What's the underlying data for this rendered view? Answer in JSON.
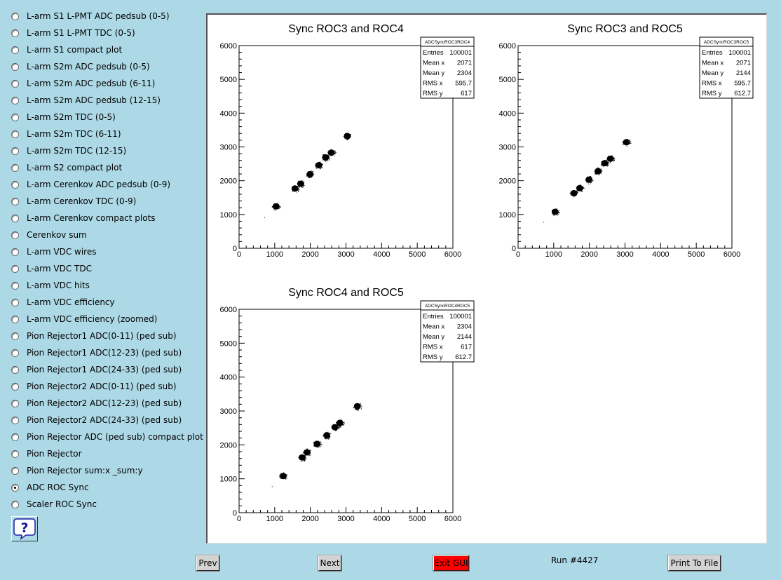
{
  "sidebar": {
    "items": [
      {
        "label": "L-arm S1 L-PMT ADC pedsub (0-5)",
        "checked": false
      },
      {
        "label": "L-arm S1 L-PMT TDC (0-5)",
        "checked": false
      },
      {
        "label": "L-arm S1 compact plot",
        "checked": false
      },
      {
        "label": "L-arm S2m ADC pedsub (0-5)",
        "checked": false
      },
      {
        "label": "L-arm S2m ADC pedsub (6-11)",
        "checked": false
      },
      {
        "label": "L-arm S2m ADC pedsub (12-15)",
        "checked": false
      },
      {
        "label": "L-arm S2m TDC (0-5)",
        "checked": false
      },
      {
        "label": "L-arm S2m TDC (6-11)",
        "checked": false
      },
      {
        "label": "L-arm S2m TDC (12-15)",
        "checked": false
      },
      {
        "label": "L-arm S2 compact plot",
        "checked": false
      },
      {
        "label": "L-arm Cerenkov ADC pedsub (0-9)",
        "checked": false
      },
      {
        "label": "L-arm Cerenkov TDC (0-9)",
        "checked": false
      },
      {
        "label": "L-arm Cerenkov compact plots",
        "checked": false
      },
      {
        "label": "Cerenkov sum",
        "checked": false
      },
      {
        "label": "L-arm VDC wires",
        "checked": false
      },
      {
        "label": "L-arm VDC TDC",
        "checked": false
      },
      {
        "label": "L-arm VDC hits",
        "checked": false
      },
      {
        "label": "L-arm VDC efficiency",
        "checked": false
      },
      {
        "label": "L-arm VDC efficiency (zoomed)",
        "checked": false
      },
      {
        "label": "Pion Rejector1 ADC(0-11) (ped sub)",
        "checked": false
      },
      {
        "label": "Pion Rejector1 ADC(12-23) (ped sub)",
        "checked": false
      },
      {
        "label": "Pion Rejector1 ADC(24-33) (ped sub)",
        "checked": false
      },
      {
        "label": "Pion Rejector2 ADC(0-11) (ped sub)",
        "checked": false
      },
      {
        "label": "Pion Rejector2 ADC(12-23) (ped sub)",
        "checked": false
      },
      {
        "label": "Pion Rejector2 ADC(24-33) (ped sub)",
        "checked": false
      },
      {
        "label": "Pion Rejector ADC (ped sub) compact plot",
        "checked": false
      },
      {
        "label": "Pion Rejector",
        "checked": false
      },
      {
        "label": "Pion Rejector sum:x _sum:y",
        "checked": false
      },
      {
        "label": "ADC ROC Sync",
        "checked": true
      },
      {
        "label": "Scaler ROC Sync",
        "checked": false
      }
    ],
    "help_icon": "question-mark-speech-bubble-icon"
  },
  "toolbar": {
    "prev_label": "Prev",
    "next_label": "Next",
    "exit_label": "Exit GUI",
    "run_label": "Run #4427",
    "print_label": "Print To File"
  },
  "colors": {
    "background": "#add8e6",
    "exit_button": "#ff0000",
    "canvas": "#ffffff",
    "markers": "#000000"
  },
  "chart_data": [
    {
      "type": "scatter",
      "title": "Sync ROC3 and ROC4",
      "xlim": [
        0,
        6000
      ],
      "ylim": [
        0,
        6000
      ],
      "xticks": [
        "0",
        "1000",
        "2000",
        "3000",
        "4000",
        "5000",
        "6000"
      ],
      "yticks": [
        "0",
        "1000",
        "2000",
        "3000",
        "4000",
        "5000",
        "6000"
      ],
      "legend_placement": "top-right",
      "stats": {
        "name": "ADCSyncROC3ROC4",
        "rows": [
          {
            "label": "Entries",
            "value": "100001"
          },
          {
            "label": "Mean x",
            "value": "2071"
          },
          {
            "label": "Mean y",
            "value": "2304"
          },
          {
            "label": "RMS x",
            "value": "595.7"
          },
          {
            "label": "RMS y",
            "value": "617"
          }
        ]
      },
      "clusters": [
        {
          "x": 710,
          "y": 920,
          "size": "dot"
        },
        {
          "x": 1040,
          "y": 1240,
          "size": "blob"
        },
        {
          "x": 1570,
          "y": 1770,
          "size": "blob"
        },
        {
          "x": 1730,
          "y": 1910,
          "size": "blob"
        },
        {
          "x": 1990,
          "y": 2190,
          "size": "blob"
        },
        {
          "x": 2240,
          "y": 2460,
          "size": "blob"
        },
        {
          "x": 2430,
          "y": 2690,
          "size": "blob"
        },
        {
          "x": 2590,
          "y": 2830,
          "size": "blob"
        },
        {
          "x": 3040,
          "y": 3320,
          "size": "blob"
        }
      ]
    },
    {
      "type": "scatter",
      "title": "Sync ROC3 and ROC5",
      "xlim": [
        0,
        6000
      ],
      "ylim": [
        0,
        6000
      ],
      "xticks": [
        "0",
        "1000",
        "2000",
        "3000",
        "4000",
        "5000",
        "6000"
      ],
      "yticks": [
        "0",
        "1000",
        "2000",
        "3000",
        "4000",
        "5000",
        "6000"
      ],
      "legend_placement": "top-right",
      "stats": {
        "name": "ADCSyncROC3ROC5",
        "rows": [
          {
            "label": "Entries",
            "value": "100001"
          },
          {
            "label": "Mean x",
            "value": "2071"
          },
          {
            "label": "Mean y",
            "value": "2144"
          },
          {
            "label": "RMS x",
            "value": "595.7"
          },
          {
            "label": "RMS y",
            "value": "612.7"
          }
        ]
      },
      "clusters": [
        {
          "x": 710,
          "y": 780,
          "size": "dot"
        },
        {
          "x": 1040,
          "y": 1080,
          "size": "blob"
        },
        {
          "x": 1570,
          "y": 1630,
          "size": "blob"
        },
        {
          "x": 1730,
          "y": 1780,
          "size": "blob"
        },
        {
          "x": 1990,
          "y": 2030,
          "size": "blob"
        },
        {
          "x": 2240,
          "y": 2280,
          "size": "blob"
        },
        {
          "x": 2430,
          "y": 2520,
          "size": "blob"
        },
        {
          "x": 2590,
          "y": 2650,
          "size": "blob"
        },
        {
          "x": 3040,
          "y": 3140,
          "size": "blob"
        }
      ]
    },
    {
      "type": "scatter",
      "title": "Sync ROC4 and ROC5",
      "xlim": [
        0,
        6000
      ],
      "ylim": [
        0,
        6000
      ],
      "xticks": [
        "0",
        "1000",
        "2000",
        "3000",
        "4000",
        "5000",
        "6000"
      ],
      "yticks": [
        "0",
        "1000",
        "2000",
        "3000",
        "4000",
        "5000",
        "6000"
      ],
      "legend_placement": "top-right",
      "stats": {
        "name": "ADCSyncROC4ROC5",
        "rows": [
          {
            "label": "Entries",
            "value": "100001"
          },
          {
            "label": "Mean x",
            "value": "2304"
          },
          {
            "label": "Mean y",
            "value": "2144"
          },
          {
            "label": "RMS x",
            "value": "617"
          },
          {
            "label": "RMS y",
            "value": "612.7"
          }
        ]
      },
      "clusters": [
        {
          "x": 920,
          "y": 780,
          "size": "dot"
        },
        {
          "x": 1240,
          "y": 1080,
          "size": "blob"
        },
        {
          "x": 1770,
          "y": 1630,
          "size": "blob"
        },
        {
          "x": 1910,
          "y": 1780,
          "size": "blob"
        },
        {
          "x": 2190,
          "y": 2030,
          "size": "blob"
        },
        {
          "x": 2460,
          "y": 2280,
          "size": "blob"
        },
        {
          "x": 2690,
          "y": 2520,
          "size": "blob"
        },
        {
          "x": 2830,
          "y": 2650,
          "size": "blob"
        },
        {
          "x": 3320,
          "y": 3140,
          "size": "blob"
        }
      ]
    }
  ]
}
